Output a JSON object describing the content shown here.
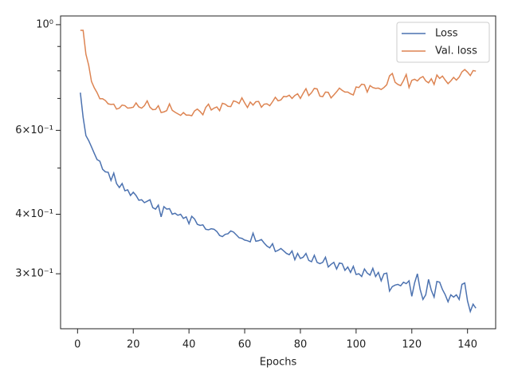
{
  "chart_data": {
    "type": "line",
    "xlabel": "Epochs",
    "x": [
      1,
      2,
      3,
      4,
      5,
      6,
      7,
      8,
      9,
      10,
      11,
      12,
      13,
      14,
      15,
      16,
      17,
      18,
      19,
      20,
      21,
      22,
      23,
      24,
      25,
      26,
      27,
      28,
      29,
      30,
      31,
      32,
      33,
      34,
      35,
      36,
      37,
      38,
      39,
      40,
      41,
      42,
      43,
      44,
      45,
      46,
      47,
      48,
      49,
      50,
      51,
      52,
      53,
      54,
      55,
      56,
      57,
      58,
      59,
      60,
      61,
      62,
      63,
      64,
      65,
      66,
      67,
      68,
      69,
      70,
      71,
      72,
      73,
      74,
      75,
      76,
      77,
      78,
      79,
      80,
      81,
      82,
      83,
      84,
      85,
      86,
      87,
      88,
      89,
      90,
      91,
      92,
      93,
      94,
      95,
      96,
      97,
      98,
      99,
      100,
      101,
      102,
      103,
      104,
      105,
      106,
      107,
      108,
      109,
      110,
      111,
      112,
      113,
      114,
      115,
      116,
      117,
      118,
      119,
      120,
      121,
      122,
      123,
      124,
      125,
      126,
      127,
      128,
      129,
      130,
      131,
      132,
      133,
      134,
      135,
      136,
      137,
      138,
      139,
      140,
      141,
      142,
      143
    ],
    "series": [
      {
        "name": "Loss",
        "color": "#4c72b0",
        "values": [
          0.72,
          0.639,
          0.585,
          0.571,
          0.554,
          0.537,
          0.521,
          0.517,
          0.497,
          0.491,
          0.49,
          0.471,
          0.488,
          0.464,
          0.455,
          0.464,
          0.448,
          0.45,
          0.438,
          0.445,
          0.438,
          0.428,
          0.429,
          0.423,
          0.426,
          0.429,
          0.413,
          0.41,
          0.418,
          0.395,
          0.415,
          0.41,
          0.411,
          0.4,
          0.402,
          0.398,
          0.4,
          0.392,
          0.395,
          0.382,
          0.396,
          0.391,
          0.381,
          0.379,
          0.38,
          0.372,
          0.371,
          0.373,
          0.372,
          0.368,
          0.361,
          0.359,
          0.363,
          0.364,
          0.369,
          0.367,
          0.362,
          0.357,
          0.356,
          0.353,
          0.352,
          0.35,
          0.365,
          0.351,
          0.352,
          0.354,
          0.348,
          0.343,
          0.34,
          0.347,
          0.334,
          0.336,
          0.339,
          0.335,
          0.331,
          0.329,
          0.335,
          0.321,
          0.331,
          0.323,
          0.325,
          0.331,
          0.32,
          0.318,
          0.328,
          0.317,
          0.315,
          0.317,
          0.325,
          0.31,
          0.314,
          0.317,
          0.307,
          0.316,
          0.315,
          0.305,
          0.31,
          0.302,
          0.311,
          0.299,
          0.3,
          0.296,
          0.307,
          0.301,
          0.298,
          0.308,
          0.296,
          0.302,
          0.29,
          0.3,
          0.301,
          0.276,
          0.282,
          0.284,
          0.285,
          0.283,
          0.288,
          0.286,
          0.29,
          0.269,
          0.287,
          0.3,
          0.278,
          0.265,
          0.271,
          0.292,
          0.277,
          0.268,
          0.289,
          0.288,
          0.278,
          0.271,
          0.262,
          0.271,
          0.268,
          0.271,
          0.265,
          0.285,
          0.287,
          0.263,
          0.25,
          0.259,
          0.254
        ]
      },
      {
        "name": "Val. loss",
        "color": "#dd8452",
        "values": [
          0.973,
          0.973,
          0.867,
          0.822,
          0.76,
          0.737,
          0.72,
          0.699,
          0.699,
          0.693,
          0.682,
          0.68,
          0.681,
          0.665,
          0.668,
          0.678,
          0.676,
          0.668,
          0.669,
          0.671,
          0.685,
          0.672,
          0.668,
          0.676,
          0.692,
          0.671,
          0.663,
          0.664,
          0.676,
          0.654,
          0.656,
          0.66,
          0.682,
          0.661,
          0.655,
          0.65,
          0.645,
          0.654,
          0.646,
          0.646,
          0.644,
          0.659,
          0.665,
          0.657,
          0.647,
          0.67,
          0.681,
          0.662,
          0.668,
          0.672,
          0.66,
          0.684,
          0.681,
          0.674,
          0.673,
          0.692,
          0.689,
          0.683,
          0.702,
          0.685,
          0.67,
          0.688,
          0.678,
          0.689,
          0.69,
          0.671,
          0.681,
          0.682,
          0.676,
          0.689,
          0.704,
          0.692,
          0.695,
          0.707,
          0.706,
          0.711,
          0.7,
          0.71,
          0.716,
          0.7,
          0.718,
          0.734,
          0.71,
          0.72,
          0.735,
          0.733,
          0.708,
          0.706,
          0.722,
          0.721,
          0.702,
          0.712,
          0.723,
          0.736,
          0.728,
          0.722,
          0.722,
          0.716,
          0.712,
          0.74,
          0.738,
          0.75,
          0.748,
          0.722,
          0.745,
          0.738,
          0.735,
          0.736,
          0.731,
          0.738,
          0.748,
          0.781,
          0.79,
          0.757,
          0.749,
          0.745,
          0.763,
          0.786,
          0.738,
          0.764,
          0.768,
          0.762,
          0.773,
          0.778,
          0.762,
          0.755,
          0.77,
          0.749,
          0.784,
          0.771,
          0.78,
          0.765,
          0.752,
          0.762,
          0.775,
          0.765,
          0.776,
          0.796,
          0.805,
          0.795,
          0.782,
          0.801,
          0.799
        ]
      }
    ],
    "xlim": [
      -6.1,
      150.1
    ],
    "xticks": [
      0,
      20,
      40,
      60,
      80,
      100,
      120,
      140
    ],
    "ylim": [
      0.23,
      1.043
    ],
    "ylog": true,
    "yticks": [
      {
        "value": 1,
        "label": "10⁰"
      },
      {
        "value": 0.6,
        "label": "6×10⁻¹"
      },
      {
        "value": 0.4,
        "label": "4×10⁻¹"
      },
      {
        "value": 0.3,
        "label": "3×10⁻¹"
      }
    ],
    "yminorticks": [
      0.5,
      0.7,
      0.8,
      0.9
    ],
    "grid": false,
    "legend": "upper right"
  }
}
